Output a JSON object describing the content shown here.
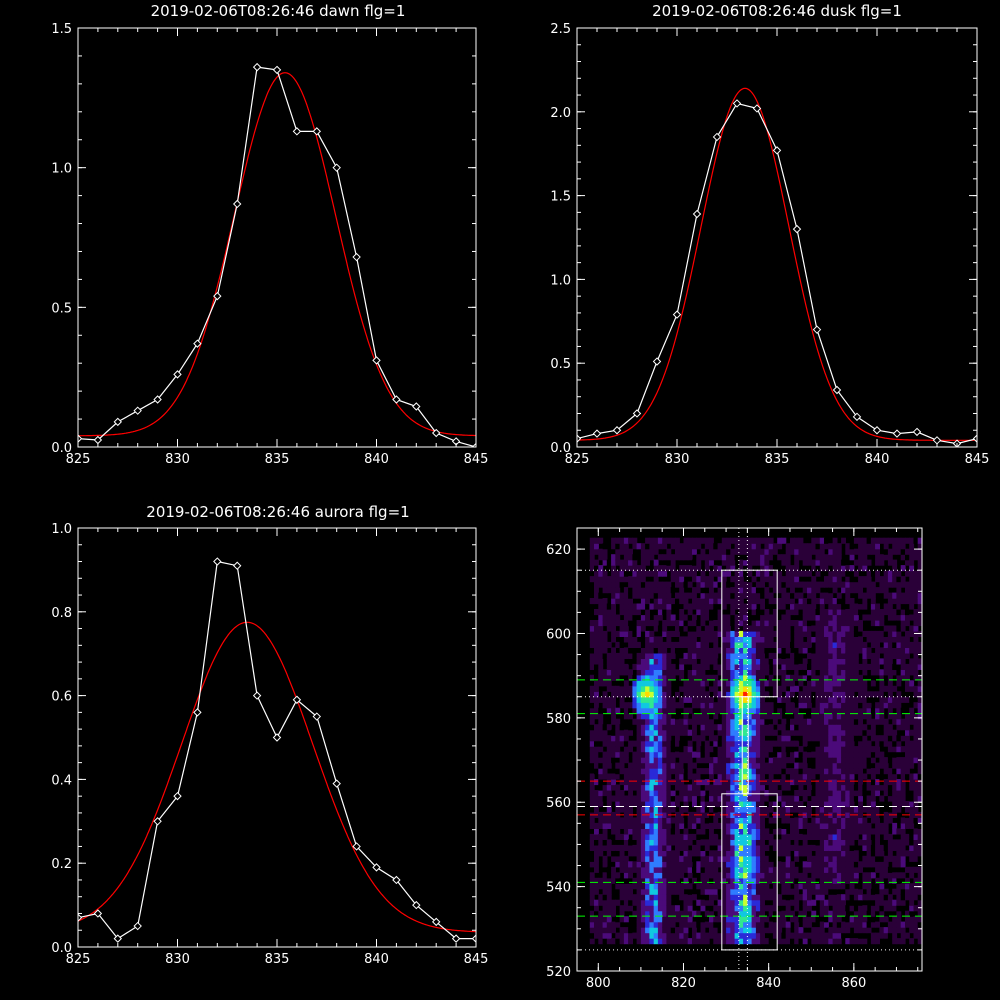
{
  "chart_data": [
    {
      "type": "line",
      "title": "2019-02-06T08:26:46 dawn flg=1",
      "xlim": [
        825,
        845
      ],
      "ylim": [
        0,
        1.5
      ],
      "xticks": [
        825,
        830,
        835,
        840,
        845
      ],
      "yticks": [
        "0.0",
        "0.5",
        "1.0",
        "1.5"
      ],
      "colors": {
        "measured": "#ffffff",
        "fit": "#ff0000"
      },
      "series": [
        {
          "role": "measured",
          "markers": "diamond",
          "x": [
            825,
            826,
            827,
            828,
            829,
            830,
            831,
            832,
            833,
            834,
            835,
            836,
            837,
            838,
            839,
            840,
            841,
            842,
            843,
            844,
            845
          ],
          "y": [
            0.03,
            0.025,
            0.09,
            0.13,
            0.17,
            0.26,
            0.37,
            0.54,
            0.87,
            1.36,
            1.35,
            1.13,
            1.13,
            1.0,
            0.68,
            0.31,
            0.17,
            0.145,
            0.05,
            0.02,
            0.0
          ]
        },
        {
          "role": "fit",
          "gaussian": {
            "amplitude": 1.3,
            "center": 835.4,
            "sigma": 2.55,
            "offset": 0.04
          }
        }
      ]
    },
    {
      "type": "line",
      "title": "2019-02-06T08:26:46 dusk flg=1",
      "xlim": [
        825,
        845
      ],
      "ylim": [
        0,
        2.5
      ],
      "xticks": [
        825,
        830,
        835,
        840,
        845
      ],
      "yticks": [
        "0.0",
        "0.5",
        "1.0",
        "1.5",
        "2.0",
        "2.5"
      ],
      "colors": {
        "measured": "#ffffff",
        "fit": "#ff0000"
      },
      "series": [
        {
          "role": "measured",
          "markers": "diamond",
          "x": [
            825,
            826,
            827,
            828,
            829,
            830,
            831,
            832,
            833,
            834,
            835,
            836,
            837,
            838,
            839,
            840,
            841,
            842,
            843,
            844,
            845
          ],
          "y": [
            0.05,
            0.08,
            0.1,
            0.2,
            0.51,
            0.79,
            1.39,
            1.85,
            2.05,
            2.02,
            1.77,
            1.3,
            0.7,
            0.34,
            0.18,
            0.1,
            0.08,
            0.09,
            0.04,
            0.02,
            0.05
          ]
        },
        {
          "role": "fit",
          "gaussian": {
            "amplitude": 2.1,
            "center": 833.4,
            "sigma": 2.2,
            "offset": 0.04
          }
        }
      ]
    },
    {
      "type": "line",
      "title": "2019-02-06T08:26:46 aurora flg=1",
      "xlim": [
        825,
        845
      ],
      "ylim": [
        0,
        1.0
      ],
      "xticks": [
        825,
        830,
        835,
        840,
        845
      ],
      "yticks": [
        "0.0",
        "0.2",
        "0.4",
        "0.6",
        "0.8",
        "1.0"
      ],
      "colors": {
        "measured": "#ffffff",
        "fit": "#ff0000"
      },
      "series": [
        {
          "role": "measured",
          "markers": "diamond",
          "x": [
            825,
            826,
            827,
            828,
            829,
            830,
            831,
            832,
            833,
            834,
            835,
            836,
            837,
            838,
            839,
            840,
            841,
            842,
            843,
            844,
            845
          ],
          "y": [
            0.07,
            0.08,
            0.02,
            0.05,
            0.3,
            0.36,
            0.56,
            0.92,
            0.91,
            0.6,
            0.5,
            0.59,
            0.55,
            0.39,
            0.24,
            0.19,
            0.16,
            0.1,
            0.06,
            0.02,
            0.02
          ]
        },
        {
          "role": "fit",
          "gaussian": {
            "amplitude": 0.74,
            "center": 833.5,
            "sigma": 3.3,
            "offset": 0.035
          }
        }
      ]
    },
    {
      "type": "heatmap",
      "xlim": [
        795,
        876
      ],
      "ylim": [
        520,
        625
      ],
      "xticks": [
        800,
        820,
        840,
        860
      ],
      "yticks": [
        520,
        540,
        560,
        580,
        600,
        620
      ],
      "colormap": [
        "#000000",
        "#2a0038",
        "#4b0a7a",
        "#2a2ad8",
        "#2f7cff",
        "#10c8e0",
        "#30e890",
        "#c8ff30",
        "#ffd800",
        "#ff2000"
      ],
      "emission_columns": [
        {
          "x_range": [
            809,
            816
          ],
          "y_range": [
            526,
            595
          ],
          "strength": 0.55
        },
        {
          "x_range": [
            829,
            838
          ],
          "y_range": [
            526,
            600
          ],
          "strength": 0.75
        },
        {
          "x_range": [
            850,
            860
          ],
          "y_range": [
            540,
            605
          ],
          "strength": 0.25
        }
      ],
      "hot_spots": [
        {
          "x": 811,
          "y": 585,
          "value": 0.85
        },
        {
          "x": 834,
          "y": 585,
          "value": 1.0
        },
        {
          "x": 834,
          "y": 545,
          "value": 0.6
        }
      ],
      "boxes": [
        {
          "x": [
            829,
            842
          ],
          "y": [
            585,
            615
          ],
          "color": "#ffffff"
        },
        {
          "x": [
            829,
            842
          ],
          "y": [
            525,
            562
          ],
          "color": "#ffffff"
        },
        {
          "x": [
            833.8,
            835.2
          ],
          "y": [
            562,
            585
          ],
          "color": "#ffffff"
        }
      ],
      "vertical_dotted": [
        {
          "x": 833,
          "color": "#ffffff"
        },
        {
          "x": 835,
          "color": "#ffffff"
        }
      ],
      "horizontal_lines": [
        {
          "y": 615,
          "color": "#ffffff",
          "style": "dotted"
        },
        {
          "y": 589,
          "color": "#00ff00",
          "style": "dashed"
        },
        {
          "y": 585,
          "color": "#ffffff",
          "style": "dotted"
        },
        {
          "y": 581,
          "color": "#00ff00",
          "style": "dashed"
        },
        {
          "y": 565,
          "color": "#ff0000",
          "style": "dashed"
        },
        {
          "y": 559,
          "color": "#ffffff",
          "style": "dashed"
        },
        {
          "y": 557,
          "color": "#ff0000",
          "style": "dashed"
        },
        {
          "y": 541,
          "color": "#00ff00",
          "style": "dashed"
        },
        {
          "y": 533,
          "color": "#00ff00",
          "style": "dashed"
        },
        {
          "y": 525,
          "color": "#ffffff",
          "style": "dotted"
        }
      ]
    }
  ]
}
